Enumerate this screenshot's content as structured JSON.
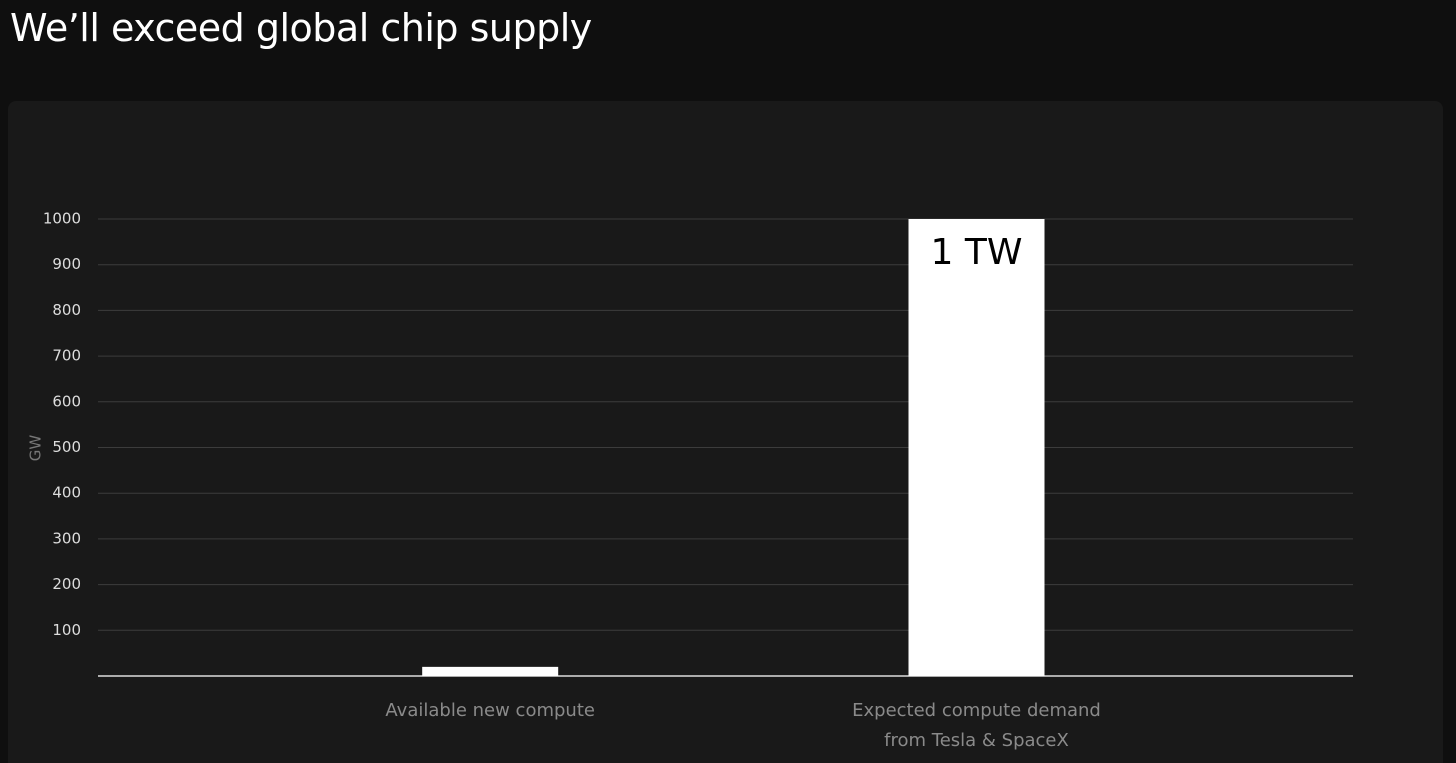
{
  "chart_data": {
    "type": "bar",
    "title": "We’ll exceed global chip supply",
    "y_label": "GW",
    "categories": [
      "Available new compute",
      "Expected compute demand from Tesla & SpaceX"
    ],
    "values": [
      20,
      1000
    ],
    "value_labels": [
      null,
      "1 TW"
    ],
    "color": "#ffffff",
    "ylim": [
      0,
      1000
    ],
    "yticks": [
      100,
      200,
      300,
      400,
      500,
      600,
      700,
      800,
      900,
      1000
    ],
    "grid": true
  }
}
